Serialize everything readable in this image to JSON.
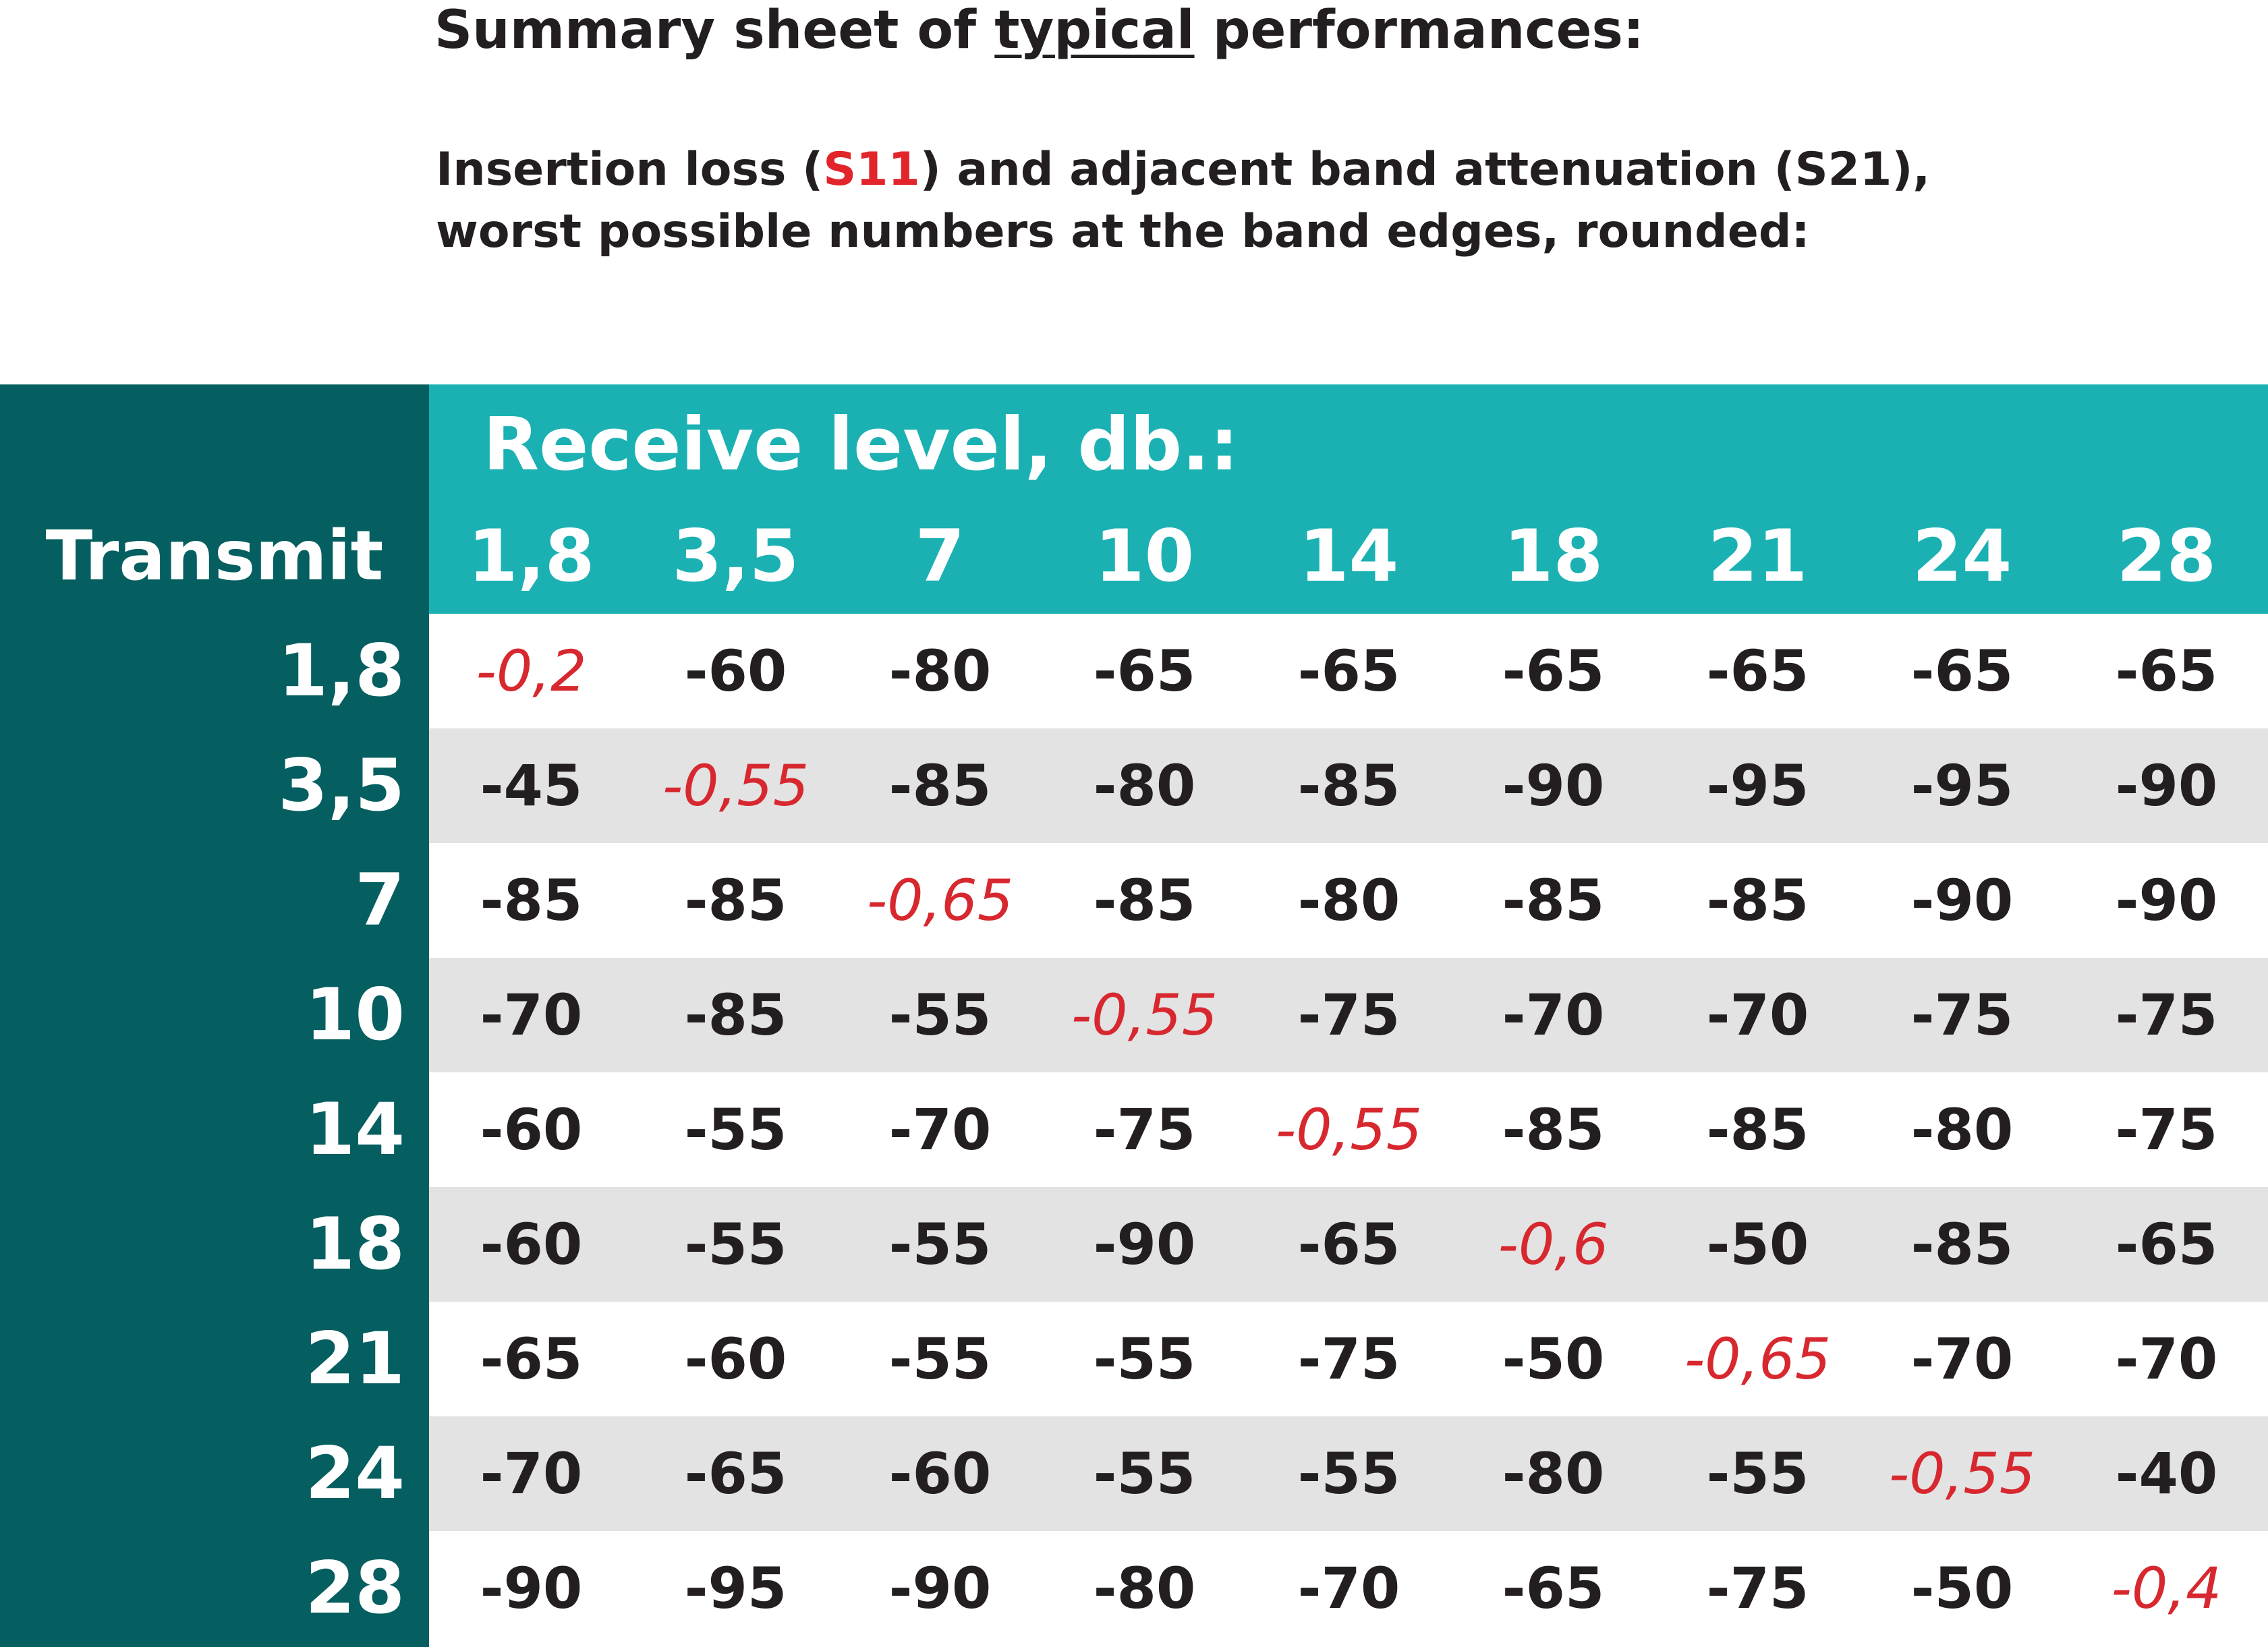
{
  "heading": {
    "title_before": "Summary sheet of ",
    "title_underlined": "typical",
    "title_after": " performances:",
    "subtitle_line1_before": "Insertion loss (",
    "subtitle_line1_red": "S11",
    "subtitle_line1_after": ") and adjacent band attenuation (S21),",
    "subtitle_line2": "worst possible numbers at the band edges, rounded:"
  },
  "table": {
    "receive_label": "Receive level, db.:",
    "transmit_label": "Transmit",
    "columns": [
      "1,8",
      "3,5",
      "7",
      "10",
      "14",
      "18",
      "21",
      "24",
      "28"
    ],
    "rows": [
      {
        "band": "1,8",
        "values": [
          "-0,2",
          "-60",
          "-80",
          "-65",
          "-65",
          "-65",
          "-65",
          "-65",
          "-65"
        ]
      },
      {
        "band": "3,5",
        "values": [
          "-45",
          "-0,55",
          "-85",
          "-80",
          "-85",
          "-90",
          "-95",
          "-95",
          "-90"
        ]
      },
      {
        "band": "7",
        "values": [
          "-85",
          "-85",
          "-0,65",
          "-85",
          "-80",
          "-85",
          "-85",
          "-90",
          "-90"
        ]
      },
      {
        "band": "10",
        "values": [
          "-70",
          "-85",
          "-55",
          "-0,55",
          "-75",
          "-70",
          "-70",
          "-75",
          "-75"
        ]
      },
      {
        "band": "14",
        "values": [
          "-60",
          "-55",
          "-70",
          "-75",
          "-0,55",
          "-85",
          "-85",
          "-80",
          "-75"
        ]
      },
      {
        "band": "18",
        "values": [
          "-60",
          "-55",
          "-55",
          "-90",
          "-65",
          "-0,6",
          "-50",
          "-85",
          "-65"
        ]
      },
      {
        "band": "21",
        "values": [
          "-65",
          "-60",
          "-55",
          "-55",
          "-75",
          "-50",
          "-0,65",
          "-70",
          "-70"
        ]
      },
      {
        "band": "24",
        "values": [
          "-70",
          "-65",
          "-60",
          "-55",
          "-55",
          "-80",
          "-55",
          "-0,55",
          "-40"
        ]
      },
      {
        "band": "28",
        "values": [
          "-90",
          "-95",
          "-90",
          "-80",
          "-70",
          "-65",
          "-75",
          "-50",
          "-0,4"
        ]
      }
    ]
  },
  "colors": {
    "dark_teal": "#055e5f",
    "teal": "#1bb1b3",
    "grey_row": "#e3e3e3",
    "red_diagonal": "#d7282f",
    "text": "#231f20"
  }
}
